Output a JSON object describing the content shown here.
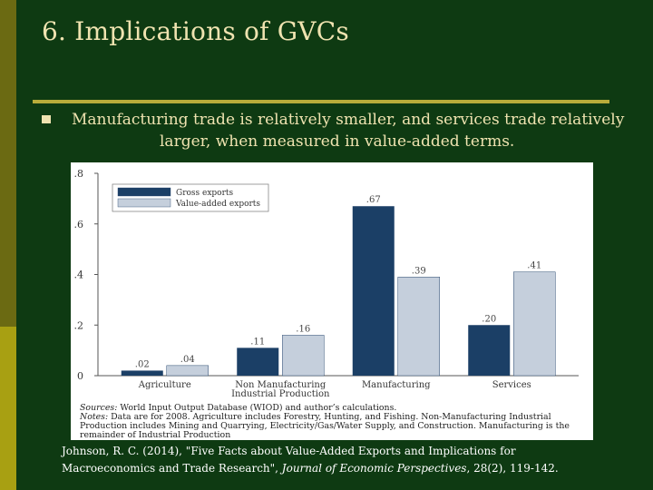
{
  "slide": {
    "title": "6. Implications of GVCs",
    "bullet_line1": "Manufacturing trade is relatively smaller, and services trade relatively",
    "bullet_line2": "larger, when measured in value-added terms."
  },
  "colors": {
    "background": "#0e3a12",
    "gross_exports": "#1b3f66",
    "value_added_exports": "#c5cfdc",
    "title_text": "#efe3b0"
  },
  "chart_data": {
    "type": "bar",
    "categories": [
      "Agriculture",
      "Non Manufacturing\nIndustrial Production",
      "Manufacturing",
      "Services"
    ],
    "series": [
      {
        "name": "Gross exports",
        "values": [
          0.02,
          0.11,
          0.67,
          0.2
        ],
        "labels": [
          ".02",
          ".11",
          ".67",
          ".20"
        ]
      },
      {
        "name": "Value-added exports",
        "values": [
          0.04,
          0.16,
          0.39,
          0.41
        ],
        "labels": [
          ".04",
          ".16",
          ".39",
          ".41"
        ]
      }
    ],
    "yticks": [
      0,
      0.2,
      0.4,
      0.6,
      0.8
    ],
    "ytick_labels": [
      "0",
      ".2",
      ".4",
      ".6",
      ".8"
    ],
    "ylim": [
      0,
      0.8
    ],
    "legend": "top-left",
    "grid": false
  },
  "notes": {
    "sources_label": "Sources:",
    "sources_text": " World Input Output Database (WIOD) and author’s calculations.",
    "notes_label": "Notes:",
    "notes_text": " Data are for 2008. Agriculture includes Forestry, Hunting, and Fishing. Non-Manufacturing Industrial Production includes Mining and Quarrying, Electricity/Gas/Water Supply, and Construction. Manufacturing is the remainder of Industrial Production"
  },
  "citation": {
    "line1": "Johnson, R. C. (2014), \"Five Facts about Value-Added Exports and Implications for",
    "line2_pre": "Macroeconomics and Trade Research\", ",
    "journal": "Journal of Economic Perspectives",
    "line2_post": ", 28(2), 119-142."
  }
}
